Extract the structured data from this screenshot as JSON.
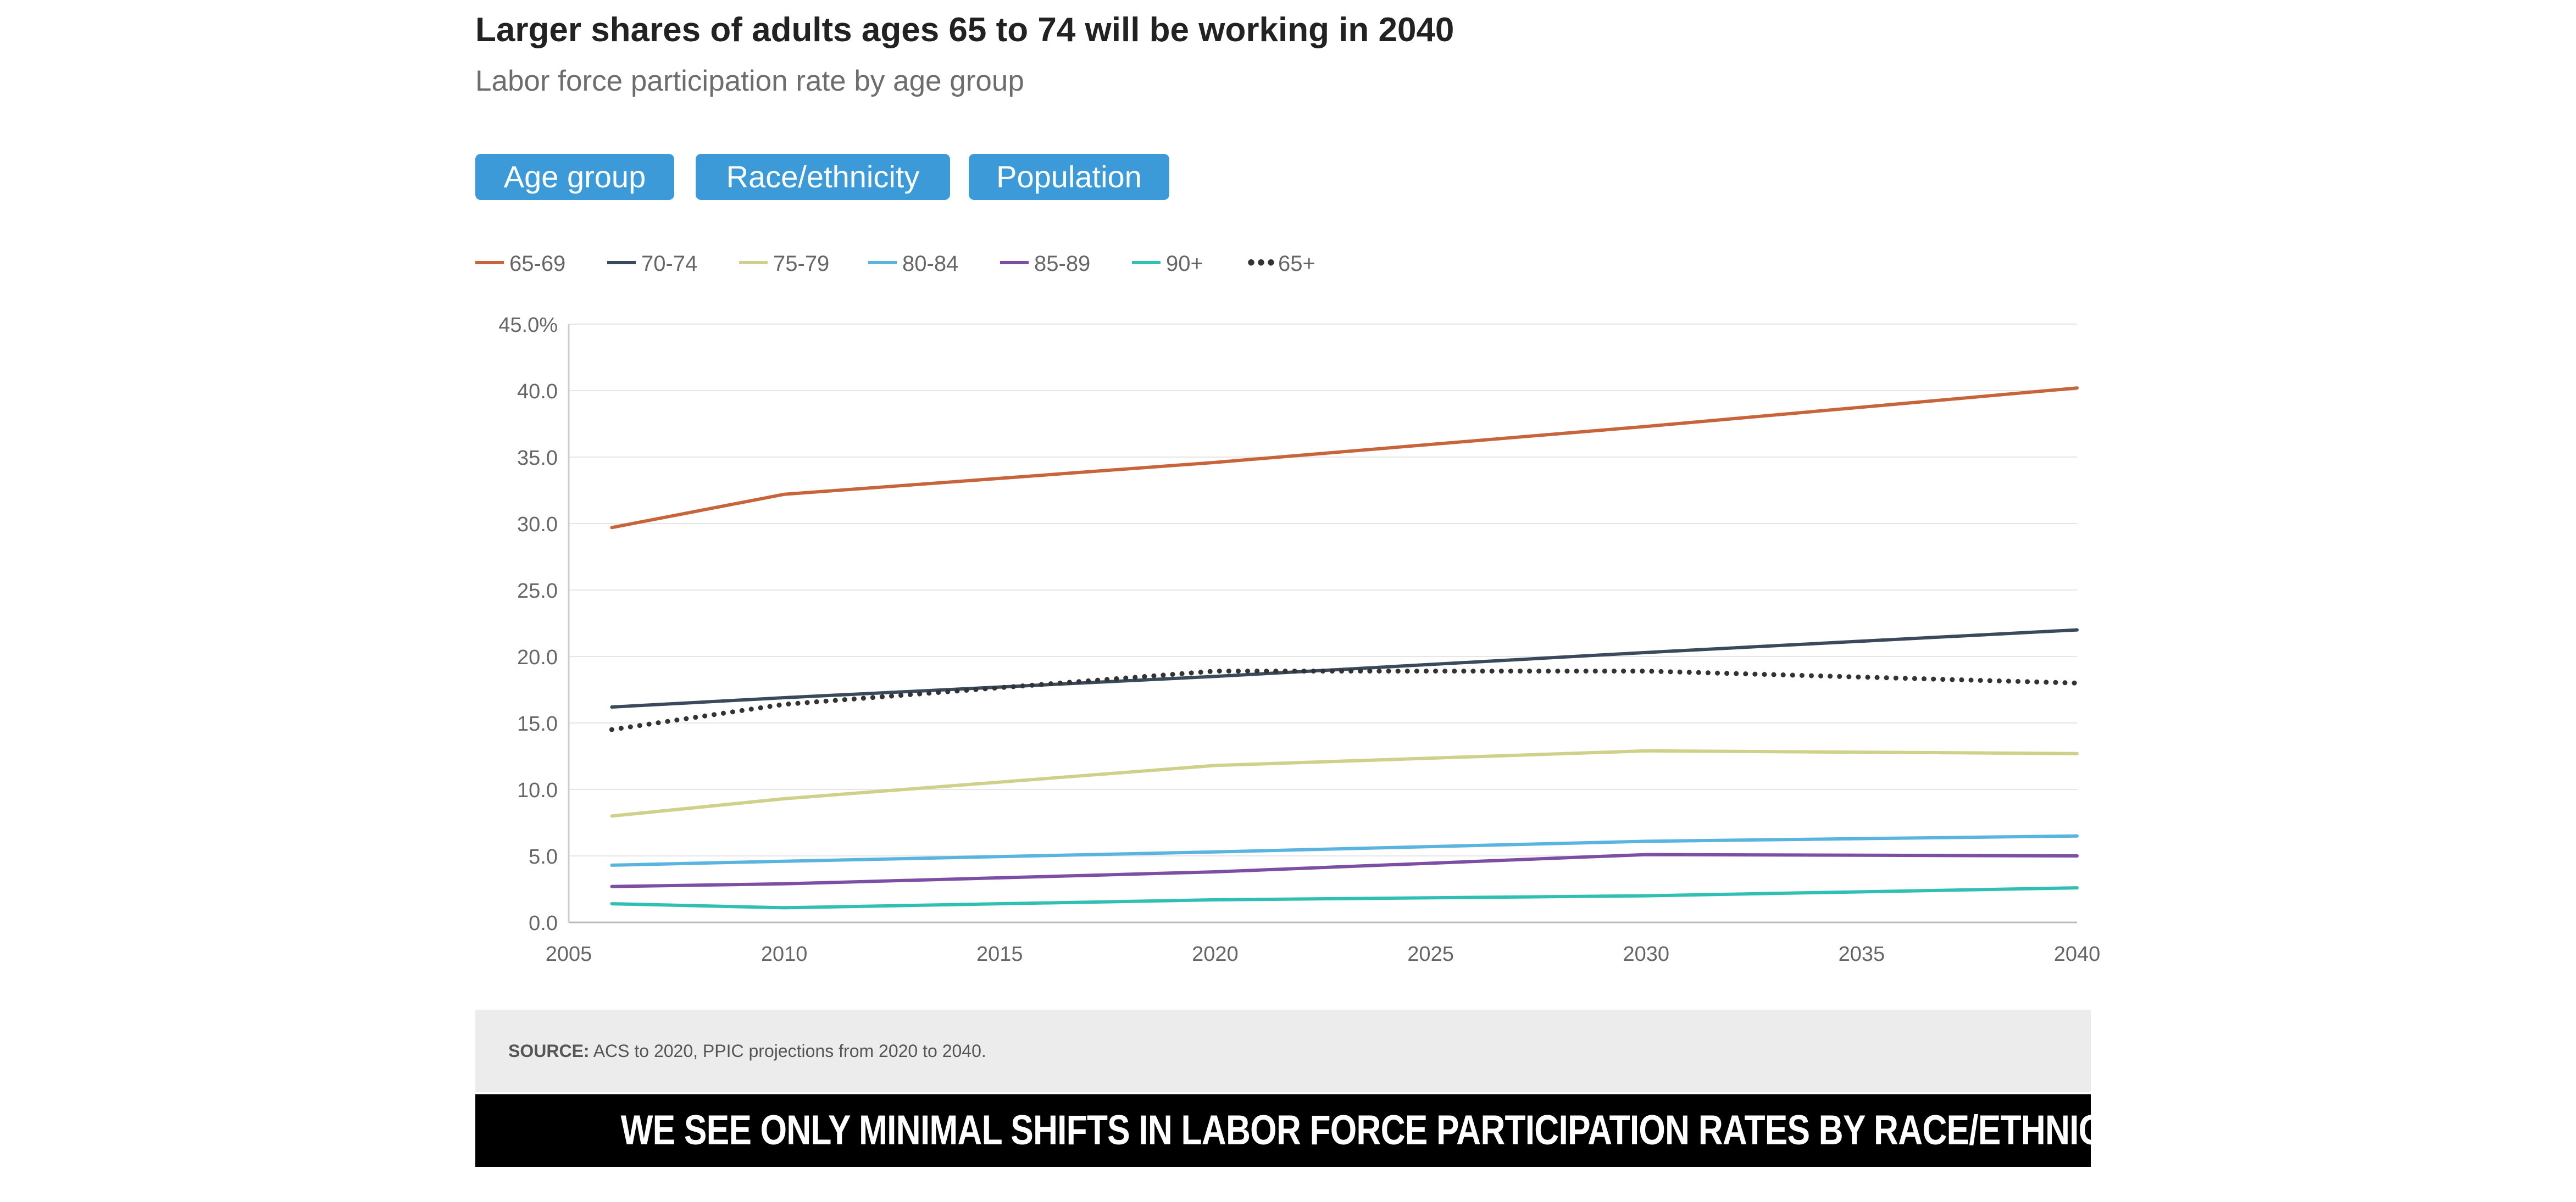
{
  "header": {
    "title": "Larger shares of adults ages 65 to 74 will be working in 2040",
    "subtitle": "Labor force participation rate by age group"
  },
  "tabs": [
    {
      "label": "Age group"
    },
    {
      "label": "Race/ethnicity"
    },
    {
      "label": "Population"
    }
  ],
  "chart_data": {
    "type": "line",
    "title": "Larger shares of adults ages 65 to 74 will be working in 2040",
    "subtitle": "Labor force participation rate by age group",
    "xlabel": "",
    "ylabel": "",
    "xlim": [
      2005,
      2040
    ],
    "ylim": [
      0,
      45
    ],
    "x_ticks": [
      2005,
      2010,
      2015,
      2020,
      2025,
      2030,
      2035,
      2040
    ],
    "y_ticks": [
      0,
      5,
      10,
      15,
      20,
      25,
      30,
      35,
      40,
      45
    ],
    "y_tick_labels": [
      "0.0",
      "5.0",
      "10.0",
      "15.0",
      "20.0",
      "25.0",
      "30.0",
      "35.0",
      "40.0",
      "45.0%"
    ],
    "grid": "horizontal",
    "legend_position": "top-left",
    "x": [
      2006,
      2010,
      2020,
      2030,
      2040
    ],
    "series": [
      {
        "name": "65-69",
        "color": "#c8643c",
        "style": "solid",
        "values": [
          29.7,
          32.2,
          34.6,
          37.3,
          40.2
        ]
      },
      {
        "name": "70-74",
        "color": "#3a4a5c",
        "style": "solid",
        "values": [
          16.2,
          16.9,
          18.5,
          20.3,
          22.0
        ]
      },
      {
        "name": "75-79",
        "color": "#cfd08a",
        "style": "solid",
        "values": [
          8.0,
          9.3,
          11.8,
          12.9,
          12.7
        ]
      },
      {
        "name": "80-84",
        "color": "#5ab4e0",
        "style": "solid",
        "values": [
          4.3,
          4.6,
          5.3,
          6.1,
          6.5
        ]
      },
      {
        "name": "85-89",
        "color": "#7e4ea4",
        "style": "solid",
        "values": [
          2.7,
          2.9,
          3.8,
          5.1,
          5.0
        ]
      },
      {
        "name": "90+",
        "color": "#2fbfb3",
        "style": "solid",
        "values": [
          1.4,
          1.1,
          1.7,
          2.0,
          2.6
        ]
      },
      {
        "name": "65+",
        "color": "#333333",
        "style": "dotted",
        "values": [
          14.5,
          16.4,
          18.9,
          18.9,
          18.0
        ]
      }
    ]
  },
  "footer": {
    "source_label": "SOURCE:",
    "source_text": " ACS to 2020, PPIC projections from 2020 to 2040.",
    "banner": "WE SEE ONLY MINIMAL SHIFTS IN LABOR FORCE PARTICIPATION RATES BY RACE/ETHNICITY"
  }
}
